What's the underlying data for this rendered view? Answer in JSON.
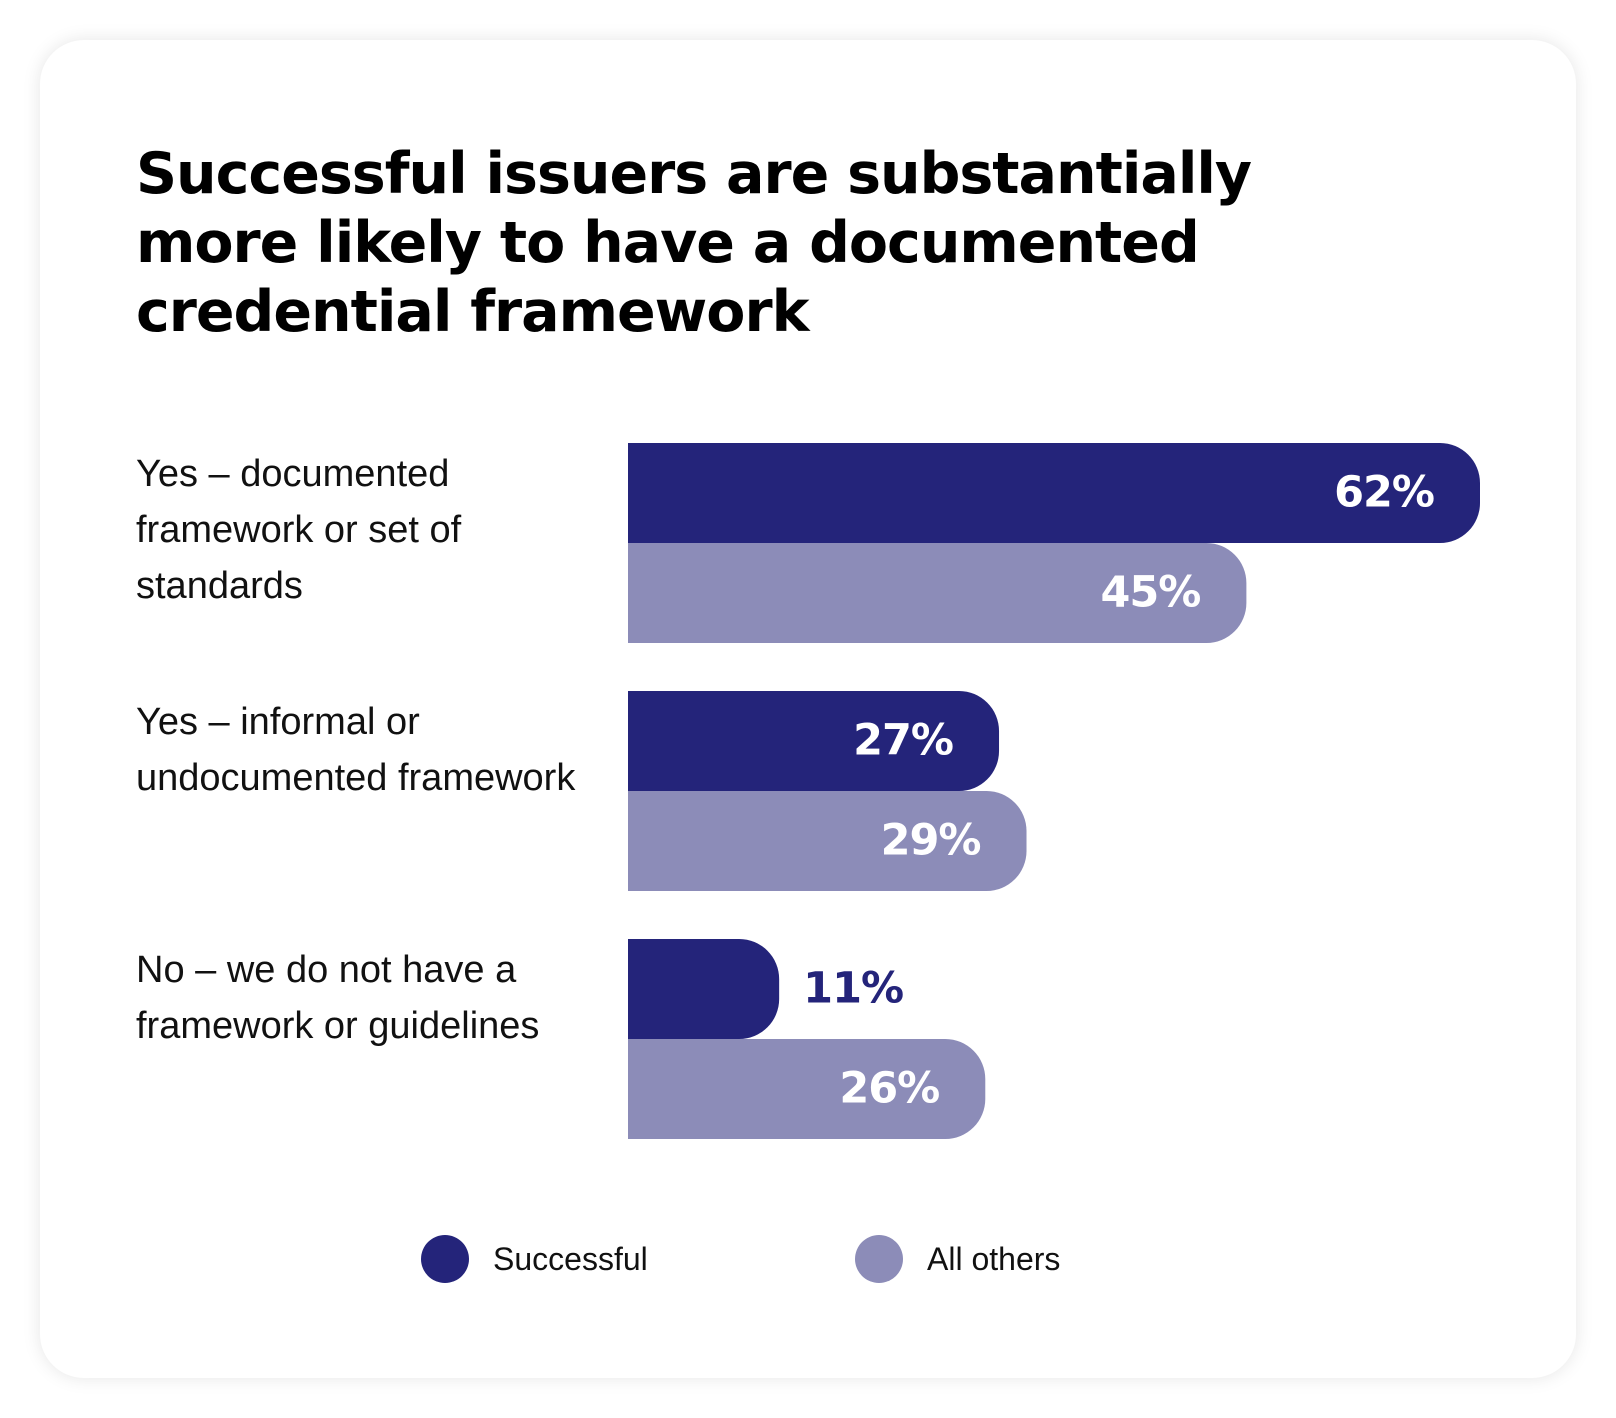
{
  "chart_data": {
    "type": "bar",
    "orientation": "horizontal",
    "title": "Successful issuers are substantially more likely to have a documented credential framework",
    "categories": [
      "Yes – documented framework or set of standards",
      "Yes – informal or undocumented framework",
      "No – we do not have a framework or guidelines"
    ],
    "series": [
      {
        "name": "Successful",
        "values": [
          62,
          27,
          11
        ],
        "labels": [
          "62%",
          "27%",
          "11%"
        ],
        "color": "#24247a"
      },
      {
        "name": "All others",
        "values": [
          45,
          29,
          26
        ],
        "labels": [
          "45%",
          "29%",
          "26%"
        ],
        "color": "#8c8cb8"
      }
    ],
    "xlim": [
      0,
      62
    ],
    "grid": false,
    "legend_position": "bottom"
  },
  "colors": {
    "card_background": "#ffffff",
    "label_text_inside": "#ffffff",
    "label_text_outside": "#24247a"
  }
}
